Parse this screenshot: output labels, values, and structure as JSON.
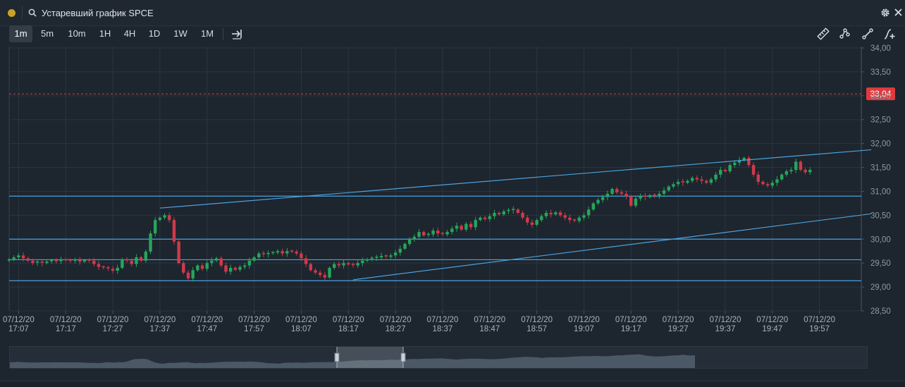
{
  "window": {
    "title": "Устаревший график SPCE"
  },
  "toolbar": {
    "timeframes": [
      "1m",
      "5m",
      "10m",
      "1H",
      "4H",
      "1D",
      "1W",
      "1M"
    ],
    "active_timeframe": "1m",
    "tools": [
      "ruler-icon",
      "path-tool-icon",
      "trend-line-icon",
      "add-indicator-icon"
    ]
  },
  "colors": {
    "background": "#1d252e",
    "grid": "#2c3540",
    "up_candle": "#26a65b",
    "down_candle": "#d1394a",
    "trend_line": "#4aa3df",
    "price_marker": "#e03a3e"
  },
  "chart_data": {
    "type": "candlestick",
    "symbol": "SPCE",
    "current_price": "33,04",
    "y_ticks": [
      "34,00",
      "33,50",
      "33,00",
      "32,50",
      "32,00",
      "31,50",
      "31,00",
      "30,50",
      "30,00",
      "29,50",
      "29,00",
      "28,50"
    ],
    "ylim": [
      28.5,
      34.0
    ],
    "x_ticks": [
      [
        "07/12/20",
        "17:07"
      ],
      [
        "07/12/20",
        "17:17"
      ],
      [
        "07/12/20",
        "17:27"
      ],
      [
        "07/12/20",
        "17:37"
      ],
      [
        "07/12/20",
        "17:47"
      ],
      [
        "07/12/20",
        "17:57"
      ],
      [
        "07/12/20",
        "18:07"
      ],
      [
        "07/12/20",
        "18:17"
      ],
      [
        "07/12/20",
        "18:27"
      ],
      [
        "07/12/20",
        "18:37"
      ],
      [
        "07/12/20",
        "18:47"
      ],
      [
        "07/12/20",
        "18:57"
      ],
      [
        "07/12/20",
        "19:07"
      ],
      [
        "07/12/20",
        "19:17"
      ],
      [
        "07/12/20",
        "19:27"
      ],
      [
        "07/12/20",
        "19:37"
      ],
      [
        "07/12/20",
        "19:47"
      ],
      [
        "07/12/20",
        "19:57"
      ]
    ],
    "horizontal_lines": [
      30.9,
      30.0,
      29.57,
      29.13
    ],
    "trend_lines": [
      {
        "from": [
          "17:37",
          30.65
        ],
        "to": [
          "20:08",
          31.87
        ]
      },
      {
        "from": [
          "18:18",
          29.15
        ],
        "to": [
          "20:08",
          30.53
        ]
      }
    ],
    "closes": [
      29.58,
      29.62,
      29.66,
      29.6,
      29.55,
      29.5,
      29.52,
      29.5,
      29.53,
      29.55,
      29.54,
      29.57,
      29.56,
      29.55,
      29.56,
      29.53,
      29.56,
      29.55,
      29.48,
      29.42,
      29.4,
      29.38,
      29.34,
      29.4,
      29.58,
      29.55,
      29.48,
      29.62,
      29.55,
      29.74,
      30.12,
      30.4,
      30.45,
      30.5,
      30.4,
      29.95,
      29.5,
      29.3,
      29.18,
      29.35,
      29.45,
      29.38,
      29.5,
      29.55,
      29.6,
      29.45,
      29.32,
      29.4,
      29.36,
      29.42,
      29.45,
      29.55,
      29.62,
      29.7,
      29.68,
      29.7,
      29.72,
      29.75,
      29.7,
      29.75,
      29.74,
      29.7,
      29.6,
      29.48,
      29.35,
      29.3,
      29.25,
      29.2,
      29.4,
      29.48,
      29.45,
      29.5,
      29.47,
      29.45,
      29.5,
      29.55,
      29.58,
      29.6,
      29.62,
      29.65,
      29.63,
      29.66,
      29.72,
      29.8,
      29.9,
      30.0,
      30.05,
      30.15,
      30.08,
      30.1,
      30.18,
      30.12,
      30.1,
      30.15,
      30.22,
      30.28,
      30.2,
      30.32,
      30.25,
      30.4,
      30.45,
      30.42,
      30.48,
      30.55,
      30.52,
      30.58,
      30.6,
      30.62,
      30.55,
      30.45,
      30.35,
      30.3,
      30.4,
      30.48,
      30.55,
      30.52,
      30.56,
      30.5,
      30.45,
      30.4,
      30.38,
      30.45,
      30.5,
      30.62,
      30.75,
      30.82,
      30.88,
      30.95,
      31.05,
      30.98,
      30.95,
      30.9,
      30.7,
      30.85,
      30.9,
      30.88,
      30.92,
      30.9,
      30.95,
      31.02,
      31.1,
      31.15,
      31.2,
      31.18,
      31.22,
      31.28,
      31.25,
      31.22,
      31.18,
      31.25,
      31.35,
      31.45,
      31.42,
      31.55,
      31.6,
      31.65,
      31.7,
      31.55,
      31.35,
      31.2,
      31.15,
      31.12,
      31.18,
      31.25,
      31.35,
      31.42,
      31.45,
      31.62,
      31.45,
      31.4,
      31.45
    ]
  }
}
